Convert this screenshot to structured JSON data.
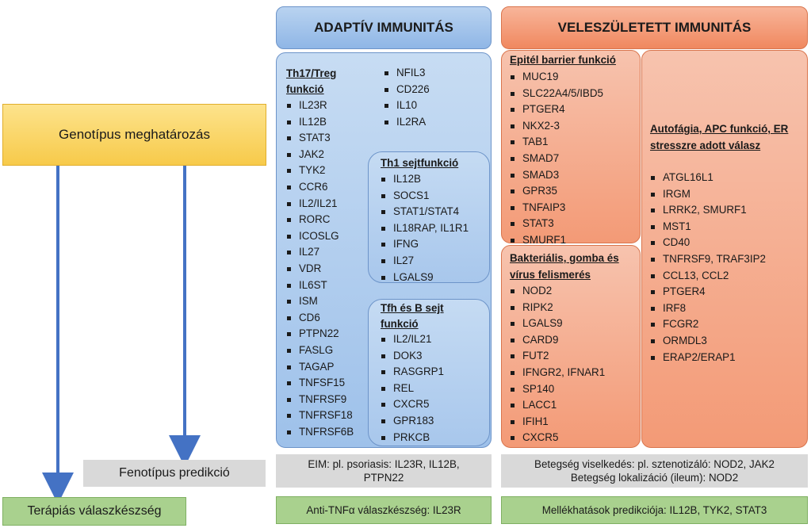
{
  "headers": {
    "adaptive": "ADAPTÍV IMMUNITÁS",
    "innate": "VELESZÜLETETT IMMUNITÁS"
  },
  "left": {
    "genotype": "Genotípus meghatározás",
    "phenotype": "Fenotípus predikció",
    "therapy": "Terápiás válaszkészség"
  },
  "adaptive": {
    "th17": {
      "title_line1": "Th17/Treg",
      "title_line2": "funkció",
      "genes": [
        "IL23R",
        "IL12B",
        "STAT3",
        "JAK2",
        "TYK2",
        "CCR6",
        "IL2/IL21",
        "RORC",
        "ICOSLG",
        "IL27",
        "VDR",
        "IL6ST",
        "ISM",
        "CD6",
        "PTPN22",
        "FASLG",
        "TAGAP",
        "TNFSF15",
        "TNFRSF9",
        "TNFRSF18",
        "TNFRSF6B"
      ]
    },
    "extra_genes": [
      "NFIL3",
      "CD226",
      "IL10",
      "IL2RA"
    ],
    "th1": {
      "title": "Th1 sejtfunkció",
      "genes": [
        "IL12B",
        "SOCS1",
        "STAT1/STAT4",
        "IL18RAP, IL1R1",
        "IFNG",
        "IL27",
        "LGALS9"
      ]
    },
    "tfh": {
      "title_line1": "Tfh és B sejt",
      "title_line2": "funkció",
      "genes": [
        "IL2/IL21",
        "DOK3",
        "RASGRP1",
        "REL",
        "CXCR5",
        "GPR183",
        "PRKCB"
      ]
    }
  },
  "innate": {
    "epithelial": {
      "title": "Epitél barrier funkció",
      "genes": [
        "MUC19",
        "SLC22A4/5/IBD5",
        "PTGER4",
        "NKX2-3",
        "TAB1",
        "SMAD7",
        "SMAD3",
        "GPR35",
        "TNFAIP3",
        "STAT3",
        "SMURF1"
      ]
    },
    "bacterial": {
      "title_line1": "Bakteriális, gomba és",
      "title_line2": "vírus felismerés",
      "genes": [
        "NOD2",
        "RIPK2",
        "LGALS9",
        "CARD9",
        "FUT2",
        "IFNGR2, IFNAR1",
        "SP140",
        "LACC1",
        "IFIH1",
        "CXCR5"
      ]
    },
    "autophagy": {
      "title_line1": "Autofágia, APC funkció, ER",
      "title_line2": "stresszre adott válasz",
      "genes": [
        "ATGL16L1",
        "IRGM",
        "LRRK2, SMURF1",
        "MST1",
        "CD40",
        "TNFRSF9, TRAF3IP2",
        "CCL13, CCL2",
        "PTGER4",
        "IRF8",
        "FCGR2",
        "ORMDL3",
        "ERAP2/ERAP1"
      ]
    }
  },
  "phenotype_row": {
    "adaptive_line1": "EIM: pl. psoriasis: IL23R, IL12B,",
    "adaptive_line2": "PTPN22",
    "innate_line1": "Betegség viselkedés: pl. sztenotizáló: NOD2, JAK2",
    "innate_line2": "Betegség lokalizáció (ileum): NOD2"
  },
  "therapy_row": {
    "adaptive": "Anti-TNFα válaszkészség: IL23R",
    "innate": "Mellékhatások predikciója: IL12B, TYK2, STAT3"
  },
  "colors": {
    "blue": "#9ec1ea",
    "orange": "#f39a76",
    "yellow": "#f7ca4a",
    "grey": "#d9d9d9",
    "green": "#a9d18e",
    "arrow": "#4472c4"
  }
}
